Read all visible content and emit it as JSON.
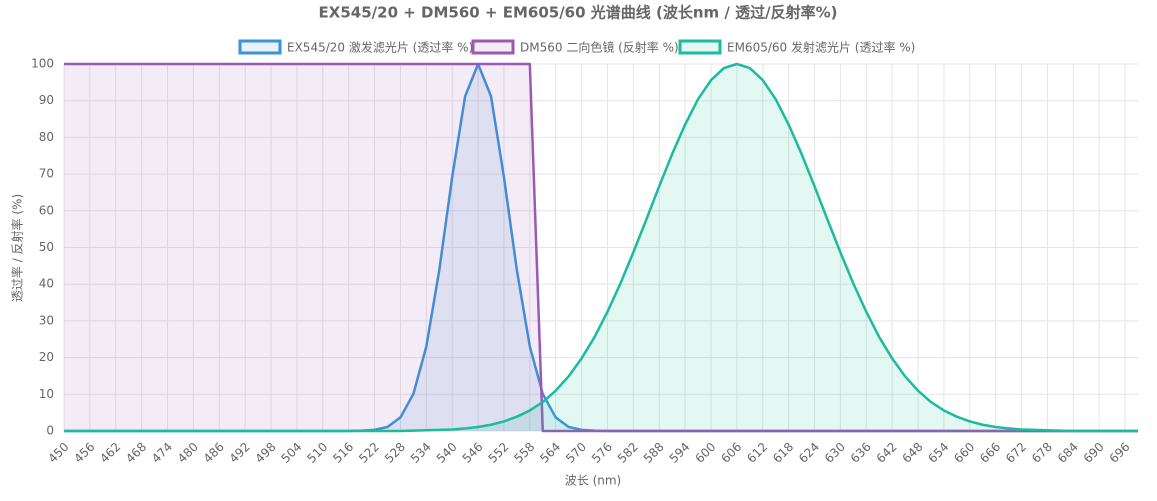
{
  "chart_data": {
    "type": "line",
    "title": "EX545/20 + DM560 + EM605/60 光谱曲线 (波长nm / 透过/反射率%)",
    "x_label": "波长 (nm)",
    "y_label": "透过率 / 反射率 (%)",
    "x": [
      450,
      453,
      456,
      459,
      462,
      465,
      468,
      471,
      474,
      477,
      480,
      483,
      486,
      489,
      492,
      495,
      498,
      501,
      504,
      507,
      510,
      513,
      516,
      519,
      522,
      525,
      528,
      531,
      534,
      537,
      540,
      543,
      546,
      549,
      552,
      555,
      558,
      561,
      564,
      567,
      570,
      573,
      576,
      579,
      582,
      585,
      588,
      591,
      594,
      597,
      600,
      603,
      606,
      609,
      612,
      615,
      618,
      621,
      624,
      627,
      630,
      633,
      636,
      639,
      642,
      645,
      648,
      651,
      654,
      657,
      660,
      663,
      666,
      669,
      672,
      675,
      678,
      681,
      684,
      687,
      690,
      693,
      696,
      699
    ],
    "series": [
      {
        "name": "EX545/20 激发滤光片 (透过率 %)",
        "color": "#3a93d6",
        "values": [
          0,
          0,
          0,
          0,
          0,
          0,
          0,
          0,
          0,
          0,
          0,
          0,
          0,
          0,
          0,
          0,
          0,
          0,
          0,
          0,
          0,
          0,
          0,
          0.1,
          0.3,
          1.1,
          3.7,
          10.1,
          23,
          43.8,
          69.2,
          91.2,
          100,
          91.2,
          69.2,
          43.8,
          23,
          10.1,
          3.7,
          1.1,
          0.3,
          0.1,
          0,
          0,
          0,
          0,
          0,
          0,
          0,
          0,
          0,
          0,
          0,
          0,
          0,
          0,
          0,
          0,
          0,
          0,
          0,
          0,
          0,
          0,
          0,
          0,
          0,
          0,
          0,
          0,
          0,
          0,
          0,
          0,
          0,
          0,
          0,
          0,
          0,
          0,
          0,
          0,
          0,
          0
        ]
      },
      {
        "name": "DM560 二向色镜 (反射率 %)",
        "color": "#9b59b6",
        "values": [
          100,
          100,
          100,
          100,
          100,
          100,
          100,
          100,
          100,
          100,
          100,
          100,
          100,
          100,
          100,
          100,
          100,
          100,
          100,
          100,
          100,
          100,
          100,
          100,
          100,
          100,
          100,
          100,
          100,
          100,
          100,
          100,
          100,
          100,
          100,
          100,
          100,
          0,
          0,
          0,
          0,
          0,
          0,
          0,
          0,
          0,
          0,
          0,
          0,
          0,
          0,
          0,
          0,
          0,
          0,
          0,
          0,
          0,
          0,
          0,
          0,
          0,
          0,
          0,
          0,
          0,
          0,
          0,
          0,
          0,
          0,
          0,
          0,
          0,
          0,
          0,
          0,
          0,
          0,
          0,
          0,
          0,
          0,
          0
        ]
      },
      {
        "name": "EM605/60 发射滤光片 (透过率 %)",
        "color": "#1abc9c",
        "values": [
          0,
          0,
          0,
          0,
          0,
          0,
          0,
          0,
          0,
          0,
          0,
          0,
          0,
          0,
          0,
          0,
          0,
          0,
          0,
          0,
          0,
          0,
          0,
          0,
          0,
          0,
          0,
          0.1,
          0.2,
          0.3,
          0.4,
          0.7,
          1.1,
          1.7,
          2.6,
          3.9,
          5.6,
          7.9,
          11,
          14.9,
          19.8,
          25.6,
          32.5,
          40.2,
          48.7,
          57.6,
          66.7,
          75.5,
          83.5,
          90.4,
          95.6,
          98.9,
          100,
          98.9,
          95.6,
          90.4,
          83.5,
          75.5,
          66.7,
          57.6,
          48.7,
          40.2,
          32.5,
          25.6,
          19.8,
          14.9,
          11,
          7.9,
          5.6,
          3.9,
          2.6,
          1.7,
          1.1,
          0.7,
          0.4,
          0.3,
          0.2,
          0.1,
          0,
          0,
          0,
          0,
          0,
          0
        ]
      }
    ],
    "xlim": [
      450,
      699
    ],
    "ylim": [
      0,
      100
    ],
    "xticks": [
      450,
      456,
      462,
      468,
      474,
      480,
      486,
      492,
      498,
      504,
      510,
      516,
      522,
      528,
      534,
      540,
      546,
      552,
      558,
      564,
      570,
      576,
      582,
      588,
      594,
      600,
      606,
      612,
      618,
      624,
      630,
      636,
      642,
      648,
      654,
      660,
      666,
      672,
      678,
      684,
      690,
      696
    ],
    "yticks": [
      0,
      10,
      20,
      30,
      40,
      50,
      60,
      70,
      80,
      90,
      100
    ],
    "grid": true,
    "legend": "top"
  }
}
